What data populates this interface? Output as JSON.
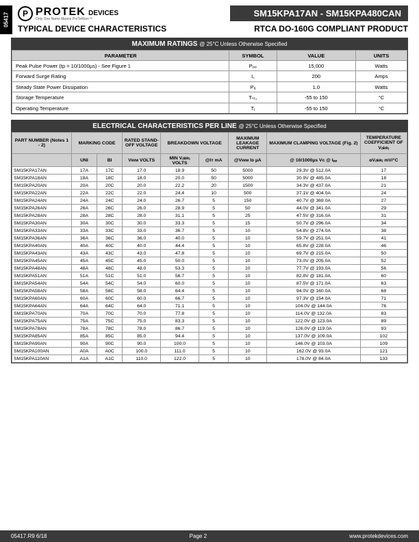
{
  "tab_code": "05417",
  "logo_text": "PROTEK",
  "logo_sym": "P",
  "logo_suffix": "DEVICES",
  "logo_sub": "Only One Name Means ProTeKtion™",
  "model_bar": "SM15KPA17AN - SM15KPA480CAN",
  "sub_left": "TYPICAL DEVICE CHARACTERISTICS",
  "sub_right": "RTCA DO-160G COMPLIANT PRODUCT",
  "max_title": "MAXIMUM RATINGS",
  "max_note": "@ 25°C Unless Otherwise Specified",
  "max_cols": [
    "PARAMETER",
    "SYMBOL",
    "VALUE",
    "UNITS"
  ],
  "max_rows": [
    [
      "Peak Pulse Power (tp = 10/1000µs) - See Figure 1",
      "Pₚₚ",
      "15,000",
      "Watts"
    ],
    [
      "Forward Surge Rating",
      "I꜀",
      "200",
      "Amps"
    ],
    [
      "Steady State Power Dissipation",
      "Pₐ",
      "1.0",
      "Watts"
    ],
    [
      "Storage Temperature",
      "Tₛₜ꜀",
      "-55 to 150",
      "°C"
    ],
    [
      "Operating Temperature",
      "Tⱼ",
      "-55 to 150",
      "°C"
    ]
  ],
  "elec_title": "ELECTRICAL CHARACTERISTICS PER LINE",
  "elec_note": "@ 25°C Unless Otherwise Specified",
  "grp": [
    "PART NUMBER (Notes 1 - 2)",
    "MARKING CODE",
    "RATED STAND-OFF VOLTAGE",
    "BREAKDOWN VOLTAGE",
    "MAXIMUM LEAKAGE CURRENT",
    "MAXIMUM CLAMPING VOLTAGE (Fig. 2)",
    "TEMPERATURE COEFFICIENT OF V₍ʙʀ₎"
  ],
  "sub_cols": [
    "",
    "UNI",
    "BI",
    "Vwм VOLTS",
    "MIN V₍ʙʀ₎ VOLTS",
    "@Iт mA",
    "@Vwм Iᴅ µA",
    "@ 10/1000µs Vc @ Iₚₚ",
    "αV₍ʙʀ₎ mV/°C"
  ],
  "rows": [
    [
      "SM15KPA17AN",
      "17A",
      "17C",
      "17.0",
      "18.9",
      "50",
      "5000",
      "29.3V @ 512.0A",
      "17"
    ],
    [
      "SM15KPA18AN",
      "18A",
      "18C",
      "18.0",
      "20.0",
      "50",
      "5000",
      "30.9V @ 485.0A",
      "18"
    ],
    [
      "SM15KPA20AN",
      "20A",
      "20C",
      "20.0",
      "22.2",
      "20",
      "1500",
      "34.3V @ 437.0A",
      "21"
    ],
    [
      "SM15KPA22AN",
      "22A",
      "22C",
      "22.0",
      "24.4",
      "10",
      "500",
      "37.1V @ 404.0A",
      "24"
    ],
    [
      "SM15KPA24AN",
      "24A",
      "24C",
      "24.0",
      "26.7",
      "5",
      "150",
      "40.7V @ 369.0A",
      "27"
    ],
    [
      "SM15KPA26AN",
      "26A",
      "26C",
      "26.0",
      "28.9",
      "5",
      "50",
      "44.0V @ 341.0A",
      "29"
    ],
    [
      "SM15KPA28AN",
      "28A",
      "28C",
      "28.0",
      "31.1",
      "5",
      "25",
      "47.5V @ 316.0A",
      "31"
    ],
    [
      "SM15KPA30AN",
      "30A",
      "30C",
      "30.0",
      "33.3",
      "5",
      "15",
      "50.7V @ 296.0A",
      "34"
    ],
    [
      "SM15KPA33AN",
      "33A",
      "33C",
      "33.0",
      "36.7",
      "5",
      "10",
      "54.8V @ 274.0A",
      "38"
    ],
    [
      "SM15KPA36AN",
      "36A",
      "36C",
      "36.0",
      "40.0",
      "5",
      "10",
      "59.7V @ 251.0A",
      "41"
    ],
    [
      "SM15KPA40AN",
      "40A",
      "40C",
      "40.0",
      "44.4",
      "5",
      "10",
      "65.8V @ 228.0A",
      "46"
    ],
    [
      "SM15KPA43AN",
      "43A",
      "43C",
      "43.0",
      "47.8",
      "5",
      "10",
      "69.7V @ 215.0A",
      "50"
    ],
    [
      "SM15KPA45AN",
      "45A",
      "45C",
      "45.0",
      "50.0",
      "5",
      "10",
      "73.0V @ 205.0A",
      "52"
    ],
    [
      "SM15KPA48AN",
      "48A",
      "48C",
      "48.0",
      "53.3",
      "5",
      "10",
      "77.7V @ 193.0A",
      "56"
    ],
    [
      "SM15KPA51AN",
      "51A",
      "51C",
      "51.0",
      "56.7",
      "5",
      "10",
      "82.8V @ 181.0A",
      "60"
    ],
    [
      "SM15KPA54AN",
      "54A",
      "54C",
      "54.0",
      "60.0",
      "5",
      "10",
      "87.5V @ 171.0A",
      "63"
    ],
    [
      "SM15KPA58AN",
      "58A",
      "58C",
      "58.0",
      "64.4",
      "5",
      "10",
      "94.0V @ 160.0A",
      "68"
    ],
    [
      "SM15KPA60AN",
      "60A",
      "60C",
      "60.0",
      "66.7",
      "5",
      "10",
      "97.3V @ 154.0A",
      "71"
    ],
    [
      "SM15KPA64AN",
      "64A",
      "64C",
      "64.0",
      "71.1",
      "5",
      "10",
      "104.0V @ 144.0A",
      "76"
    ],
    [
      "SM15KPA70AN",
      "70A",
      "70C",
      "70.0",
      "77.8",
      "5",
      "10",
      "114.0V @ 132.0A",
      "83"
    ],
    [
      "SM15KPA75AN",
      "75A",
      "75C",
      "75.0",
      "83.3",
      "5",
      "10",
      "122.0V @ 123.0A",
      "89"
    ],
    [
      "SM15KPA78AN",
      "78A",
      "78C",
      "78.0",
      "86.7",
      "5",
      "10",
      "126.0V @ 119.0A",
      "93"
    ],
    [
      "SM15KPA85AN",
      "85A",
      "85C",
      "85.0",
      "94.4",
      "5",
      "10",
      "137.0V @ 109.0A",
      "102"
    ],
    [
      "SM15KPA90AN",
      "90A",
      "90C",
      "90.0",
      "100.0",
      "5",
      "10",
      "146.0V @ 103.0A",
      "109"
    ],
    [
      "SM15KPA100AN",
      "A0A",
      "A0C",
      "100.0",
      "111.0",
      "5",
      "10",
      "162.0V @ 93.0A",
      "121"
    ],
    [
      "SM15KPA110AN",
      "A1A",
      "A1C",
      "110.0",
      "122.0",
      "5",
      "10",
      "178.0V @ 84.0A",
      "133"
    ]
  ],
  "ftr_left": "05417.R9 6/18",
  "ftr_mid": "Page 2",
  "ftr_right": "www.protekdevices.com"
}
